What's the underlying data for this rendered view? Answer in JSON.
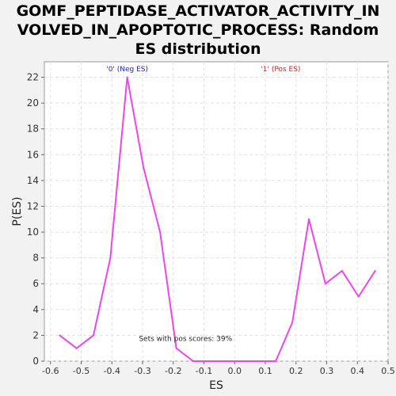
{
  "title_lines": [
    "GOMF_PEPTIDASE_ACTIVATOR_ACTIVITY_IN",
    "VOLVED_IN_APOPTOTIC_PROCESS: Random",
    "ES distribution"
  ],
  "chart_data": {
    "type": "line",
    "title": "GOMF_PEPTIDASE_ACTIVATOR_ACTIVITY_INVOLVED_IN_APOPTOTIC_PROCESS: Random ES distribution",
    "xlabel": "ES",
    "ylabel": "P(ES)",
    "xlim": [
      -0.62,
      0.5
    ],
    "ylim": [
      0,
      23.2
    ],
    "x_ticks": [
      -0.6,
      -0.5,
      -0.4,
      -0.3,
      -0.2,
      -0.1,
      0.0,
      0.1,
      0.2,
      0.3,
      0.4,
      0.5
    ],
    "x_tick_labels": [
      "-0.6",
      "-0.5",
      "-0.4",
      "-0.3",
      "-0.2",
      "-0.1",
      "0.0",
      "0.1",
      "0.2",
      "0.3",
      "0.4",
      "0.5"
    ],
    "y_ticks": [
      0,
      2,
      4,
      6,
      8,
      10,
      12,
      14,
      16,
      18,
      20,
      22
    ],
    "y_tick_labels": [
      "0",
      "2",
      "4",
      "6",
      "8",
      "10",
      "12",
      "14",
      "16",
      "18",
      "20",
      "22"
    ],
    "grid": true,
    "series": [
      {
        "color": "#ee44ee",
        "x": [
          -0.57,
          -0.515,
          -0.46,
          -0.405,
          -0.35,
          -0.297,
          -0.243,
          -0.19,
          -0.135,
          -0.082,
          -0.028,
          0.027,
          0.08,
          0.134,
          0.188,
          0.242,
          0.296,
          0.35,
          0.404,
          0.458
        ],
        "y": [
          2,
          1,
          2,
          8,
          22,
          15,
          10,
          1,
          0,
          0,
          0,
          0,
          0,
          0,
          3,
          11,
          6,
          7,
          5,
          7
        ]
      }
    ],
    "annotations": [
      {
        "text": "'0' (Neg ES)",
        "x": -0.35,
        "y": 22.7,
        "color": "#2222cc"
      },
      {
        "text": "'1' (Pos ES)",
        "x": 0.15,
        "y": 22.7,
        "color": "#cc2222"
      },
      {
        "text": "Sets with pos scores: 39%",
        "x": -0.16,
        "y": 1.8,
        "color": "#222222"
      }
    ]
  }
}
